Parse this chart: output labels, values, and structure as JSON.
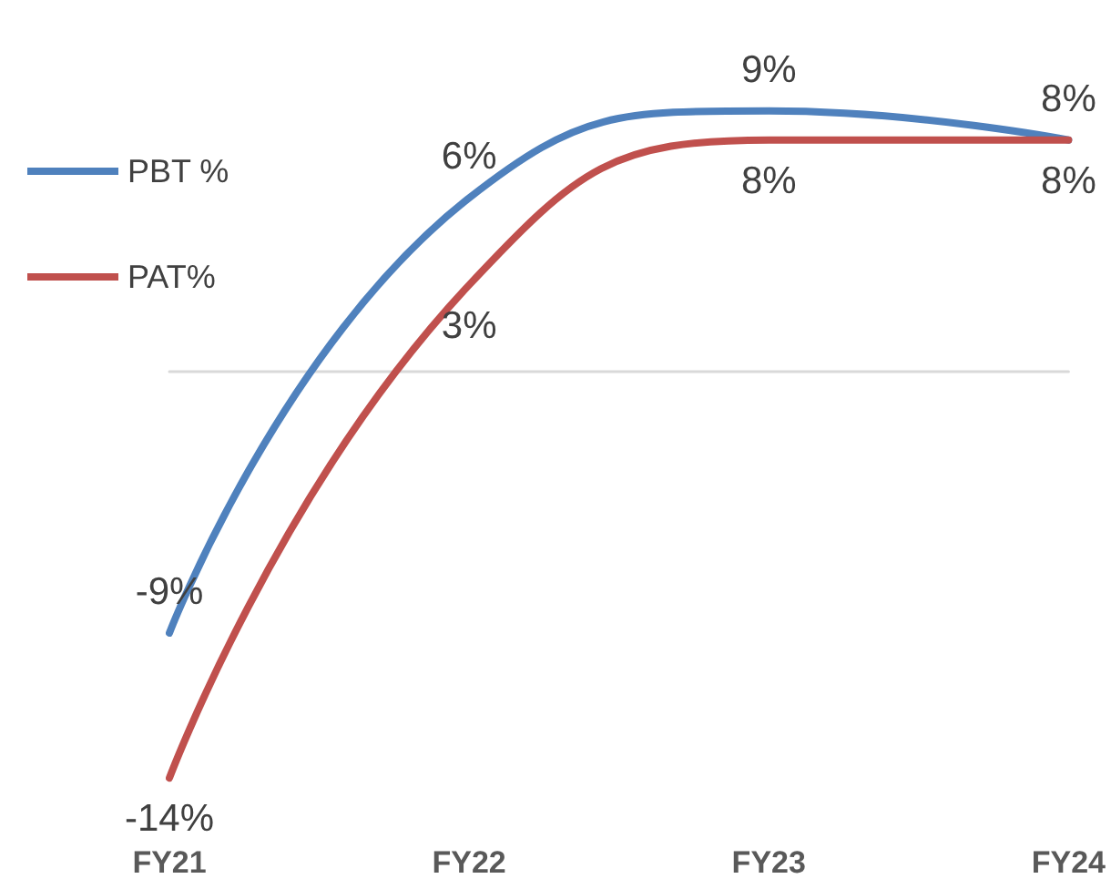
{
  "chart_data": {
    "type": "line",
    "categories": [
      "FY21",
      "FY22",
      "FY23",
      "FY24"
    ],
    "legend": "left",
    "marker": "none",
    "line_style": "solid",
    "grid": false,
    "series": [
      {
        "name": "PBT %",
        "color": "#4f81bd",
        "values": [
          -9,
          6,
          9,
          8
        ],
        "value_labels": [
          "-9%",
          "6%",
          "9%",
          "8%"
        ]
      },
      {
        "name": "PAT%",
        "color": "#c0504d",
        "values": [
          -14,
          3,
          8,
          8
        ],
        "value_labels": [
          "-14%",
          "3%",
          "8%",
          "8%"
        ]
      }
    ]
  }
}
